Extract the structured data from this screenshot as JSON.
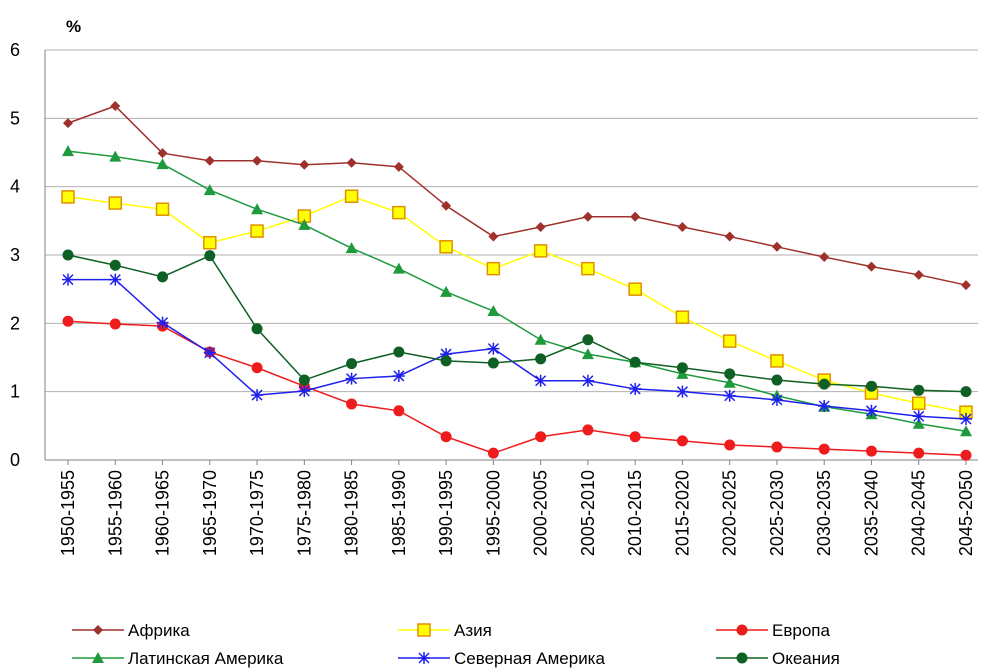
{
  "chart_data": {
    "type": "line",
    "y_label": "%",
    "categories": [
      "1950-1955",
      "1955-1960",
      "1960-1965",
      "1965-1970",
      "1970-1975",
      "1975-1980",
      "1980-1985",
      "1985-1990",
      "1990-1995",
      "1995-2000",
      "2000-2005",
      "2005-2010",
      "2010-2015",
      "2015-2020",
      "2020-2025",
      "2025-2030",
      "2030-2035",
      "2035-2040",
      "2040-2045",
      "2045-2050"
    ],
    "ylim": [
      0,
      6
    ],
    "yticks": [
      0,
      1,
      2,
      3,
      4,
      5,
      6
    ],
    "grid": true,
    "series": [
      {
        "name": "Африка",
        "color": "#a0302c",
        "marker": "diamond",
        "values": [
          4.93,
          5.18,
          4.49,
          4.38,
          4.38,
          4.32,
          4.35,
          4.29,
          3.72,
          3.27,
          3.41,
          3.56,
          3.56,
          3.41,
          3.27,
          3.12,
          2.97,
          2.83,
          2.71,
          2.56
        ]
      },
      {
        "name": "Азия",
        "color": "#ffff00",
        "marker": "square",
        "values": [
          3.85,
          3.76,
          3.67,
          3.18,
          3.35,
          3.57,
          3.86,
          3.62,
          3.12,
          2.8,
          3.06,
          2.8,
          2.5,
          2.09,
          1.74,
          1.45,
          1.17,
          0.98,
          0.83,
          0.7
        ]
      },
      {
        "name": "Европа",
        "color": "#ee1c1c",
        "marker": "circle",
        "values": [
          2.03,
          1.99,
          1.96,
          1.58,
          1.35,
          1.08,
          0.82,
          0.72,
          0.34,
          0.1,
          0.34,
          0.44,
          0.34,
          0.28,
          0.22,
          0.19,
          0.16,
          0.13,
          0.1,
          0.07
        ]
      },
      {
        "name": "Латинская Америка",
        "color": "#1e9a3c",
        "marker": "triangle",
        "values": [
          4.52,
          4.44,
          4.33,
          3.95,
          3.67,
          3.44,
          3.1,
          2.8,
          2.46,
          2.18,
          1.76,
          1.55,
          1.43,
          1.26,
          1.13,
          0.94,
          0.78,
          0.67,
          0.53,
          0.42
        ]
      },
      {
        "name": "Северная Америка",
        "color": "#2020ee",
        "marker": "star",
        "values": [
          2.64,
          2.64,
          2.01,
          1.57,
          0.95,
          1.01,
          1.19,
          1.23,
          1.55,
          1.63,
          1.16,
          1.16,
          1.04,
          1.0,
          0.94,
          0.88,
          0.79,
          0.72,
          0.64,
          0.6
        ]
      },
      {
        "name": "Океания",
        "color": "#0e6024",
        "marker": "circle",
        "values": [
          3.0,
          2.85,
          2.68,
          2.99,
          1.92,
          1.17,
          1.41,
          1.58,
          1.45,
          1.42,
          1.48,
          1.76,
          1.43,
          1.35,
          1.26,
          1.17,
          1.11,
          1.08,
          1.02,
          1.0
        ]
      }
    ]
  }
}
